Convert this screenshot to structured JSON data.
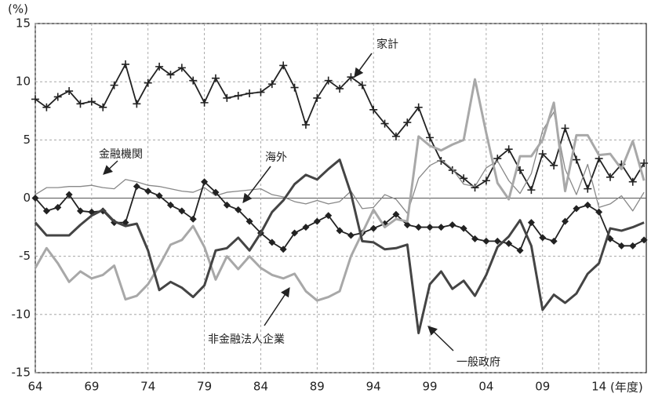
{
  "chart_data": {
    "type": "line",
    "y_unit": "(%)",
    "x_unit": "(年度)",
    "x": [
      1964,
      1965,
      1966,
      1967,
      1968,
      1969,
      1970,
      1971,
      1972,
      1973,
      1974,
      1975,
      1976,
      1977,
      1978,
      1979,
      1980,
      1981,
      1982,
      1983,
      1984,
      1985,
      1986,
      1987,
      1988,
      1989,
      1990,
      1991,
      1992,
      1993,
      1994,
      1995,
      1996,
      1997,
      1998,
      1999,
      2000,
      2001,
      2002,
      2003,
      2004,
      2005,
      2006,
      2007,
      2008,
      2009,
      2010,
      2011,
      2012,
      2013,
      2014,
      2015,
      2016,
      2017,
      2018
    ],
    "xlim": [
      1964,
      2018.2
    ],
    "xticks": [
      {
        "value": 1964,
        "label": "64"
      },
      {
        "value": 1969,
        "label": "69"
      },
      {
        "value": 1974,
        "label": "74"
      },
      {
        "value": 1979,
        "label": "79"
      },
      {
        "value": 1984,
        "label": "84"
      },
      {
        "value": 1989,
        "label": "89"
      },
      {
        "value": 1994,
        "label": "94"
      },
      {
        "value": 1999,
        "label": "99"
      },
      {
        "value": 2004,
        "label": "04"
      },
      {
        "value": 2009,
        "label": "09"
      },
      {
        "value": 2014,
        "label": "14"
      }
    ],
    "ylim": [
      -15,
      15
    ],
    "yticks": [
      15,
      10,
      5,
      0,
      -5,
      -10,
      -15
    ],
    "grid": true,
    "series": [
      {
        "name": "家計",
        "color": "#222222",
        "marker": "plus",
        "width": 1.8,
        "values": [
          8.5,
          7.8,
          8.7,
          9.2,
          8.1,
          8.3,
          7.8,
          9.7,
          11.5,
          8.1,
          9.9,
          11.3,
          10.6,
          11.2,
          10.1,
          8.2,
          10.3,
          8.6,
          8.8,
          9.0,
          9.1,
          9.8,
          11.4,
          9.5,
          6.3,
          8.6,
          10.1,
          9.4,
          10.4,
          9.7,
          7.6,
          6.4,
          5.3,
          6.5,
          7.8,
          5.2,
          3.2,
          2.4,
          1.7,
          0.9,
          1.5,
          3.4,
          4.2,
          2.4,
          0.7,
          3.8,
          2.8,
          6.0,
          3.3,
          0.8,
          3.4,
          1.8,
          2.9,
          1.4,
          3.0
        ]
      },
      {
        "name": "金融機関",
        "color": "#888888",
        "marker": "none",
        "width": 1.3,
        "values": [
          0.3,
          0.9,
          0.9,
          1.0,
          1.0,
          1.1,
          0.9,
          0.8,
          1.6,
          1.4,
          1.1,
          1.0,
          0.8,
          0.6,
          0.5,
          0.9,
          0.2,
          0.5,
          0.6,
          0.7,
          0.8,
          0.3,
          0.1,
          -0.3,
          -0.5,
          -0.2,
          -0.5,
          -0.3,
          0.6,
          -0.9,
          -0.8,
          0.3,
          -0.1,
          -1.3,
          1.7,
          2.8,
          3.3,
          2.5,
          1.2,
          1.0,
          2.6,
          3.2,
          1.5,
          0.4,
          2.1,
          5.8,
          7.4,
          2.5,
          0.3,
          2.9,
          -0.8,
          -0.5,
          0.2,
          -1.1,
          0.5
        ]
      },
      {
        "name": "海外",
        "color": "#222222",
        "marker": "diamond",
        "width": 1.8,
        "values": [
          0,
          -1.1,
          -0.8,
          0.3,
          -1.1,
          -1.2,
          -1.1,
          -2.1,
          -2.1,
          1.0,
          0.6,
          0.2,
          -0.6,
          -1.1,
          -1.8,
          1.4,
          0.5,
          -0.6,
          -1.0,
          -2.0,
          -3.0,
          -3.8,
          -4.4,
          -3.0,
          -2.5,
          -2.0,
          -1.5,
          -2.8,
          -3.2,
          -3.0,
          -2.6,
          -2.2,
          -1.4,
          -2.3,
          -2.5,
          -2.5,
          -2.5,
          -2.3,
          -2.6,
          -3.5,
          -3.7,
          -3.7,
          -3.9,
          -4.5,
          -2.1,
          -3.4,
          -3.7,
          -2.0,
          -0.9,
          -0.6,
          -1.2,
          -3.5,
          -4.1,
          -4.1,
          -3.6
        ]
      },
      {
        "name": "非金融法人企業",
        "color": "#a8a8a8",
        "marker": "none",
        "width": 3,
        "values": [
          -6.0,
          -4.3,
          -5.6,
          -7.2,
          -6.3,
          -6.9,
          -6.6,
          -5.8,
          -8.7,
          -8.4,
          -7.4,
          -5.8,
          -4.0,
          -3.6,
          -2.4,
          -4.2,
          -7.0,
          -5.0,
          -6.1,
          -5.0,
          -6.0,
          -6.6,
          -6.9,
          -6.5,
          -8.0,
          -8.8,
          -8.5,
          -8.0,
          -5.0,
          -3.0,
          -1.0,
          -2.5,
          -1.8,
          -2.0,
          5.3,
          4.5,
          4.1,
          4.6,
          5.0,
          10.2,
          5.6,
          1.3,
          -0.1,
          3.6,
          3.6,
          5.0,
          8.2,
          0.6,
          5.4,
          5.4,
          3.7,
          3.8,
          2.5,
          4.9,
          1.5
        ]
      },
      {
        "name": "一般政府",
        "color": "#444444",
        "marker": "none",
        "width": 3,
        "values": [
          -2.1,
          -3.2,
          -3.2,
          -3.2,
          -2.3,
          -1.5,
          -1.0,
          -2.0,
          -2.4,
          -2.2,
          -4.5,
          -7.9,
          -7.2,
          -7.7,
          -8.5,
          -7.5,
          -4.5,
          -4.3,
          -3.4,
          -4.5,
          -3.0,
          -1.2,
          -0.2,
          1.2,
          2.0,
          1.6,
          2.5,
          3.3,
          0.4,
          -3.7,
          -3.8,
          -4.4,
          -4.3,
          -4.0,
          -11.6,
          -7.4,
          -6.3,
          -7.8,
          -7.1,
          -8.4,
          -6.6,
          -4.2,
          -3.3,
          -1.9,
          -4.1,
          -9.6,
          -8.3,
          -9.0,
          -8.2,
          -6.5,
          -5.6,
          -2.6,
          -2.8,
          -2.5,
          -2.1
        ]
      }
    ]
  }
}
